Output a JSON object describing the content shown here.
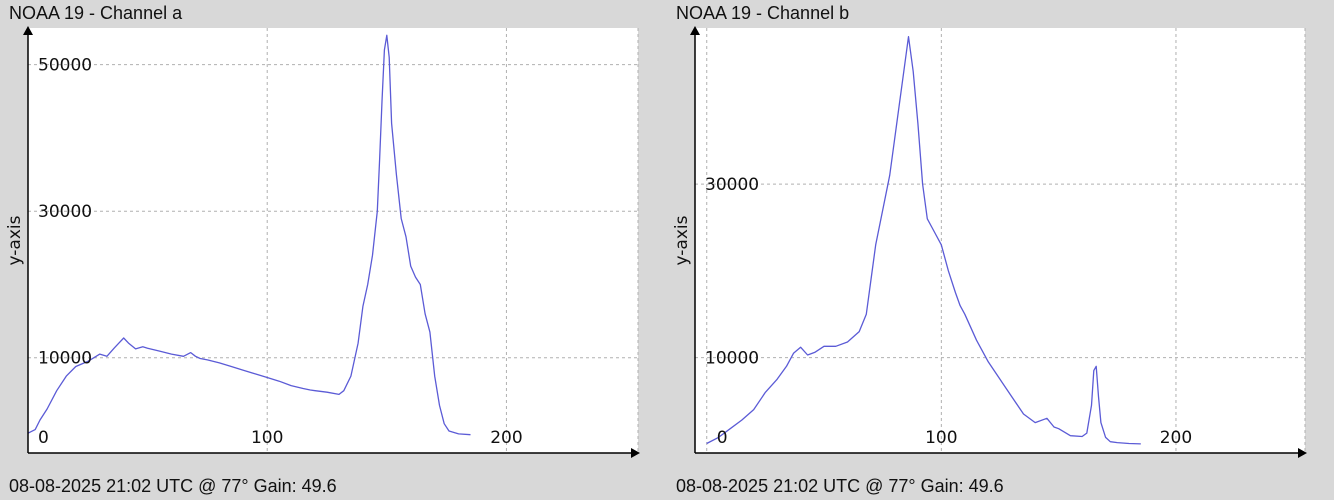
{
  "panels": [
    {
      "title": "NOAA 19 - Channel a",
      "footer": "08-08-2025 21:02 UTC @ 77° Gain: 49.6"
    },
    {
      "title": "NOAA 19 - Channel b",
      "footer": "08-08-2025 21:02 UTC @ 77° Gain: 49.6"
    }
  ],
  "colors": {
    "background": "#d8d8d8",
    "plot_background": "#ffffff",
    "line": "#5b5bd6",
    "grid": "#b0b0b0",
    "axis": "#000000"
  },
  "chart_data": [
    {
      "type": "line",
      "title": "NOAA 19 - Channel a",
      "xlabel": "",
      "ylabel": "y-axis",
      "xlim": [
        0,
        255
      ],
      "ylim": [
        -3000,
        55000
      ],
      "xticks": [
        0,
        100,
        200
      ],
      "yticks": [
        10000,
        30000,
        50000
      ],
      "grid": true,
      "series": [
        {
          "x": [
            0,
            3,
            5,
            8,
            12,
            16,
            20,
            25,
            30,
            33,
            36,
            38,
            40,
            42,
            45,
            48,
            50,
            55,
            60,
            65,
            68,
            70,
            72,
            75,
            80,
            85,
            90,
            95,
            100,
            105,
            110,
            115,
            118,
            120,
            125,
            130,
            132,
            135,
            138,
            140,
            142,
            144,
            146,
            147,
            148,
            149,
            150,
            151,
            152,
            154,
            156,
            158,
            160,
            162,
            164,
            166,
            168,
            170,
            172,
            174,
            176,
            180,
            185
          ],
          "y": [
            -300,
            200,
            1500,
            3000,
            5500,
            7500,
            8800,
            9500,
            10500,
            10200,
            11300,
            12000,
            12700,
            12000,
            11200,
            11500,
            11300,
            10900,
            10500,
            10200,
            10700,
            10200,
            9900,
            9700,
            9300,
            8800,
            8300,
            7800,
            7300,
            6800,
            6200,
            5800,
            5600,
            5500,
            5300,
            5000,
            5500,
            7500,
            12000,
            17000,
            20000,
            24000,
            30000,
            37000,
            45000,
            52000,
            54000,
            51000,
            42000,
            35000,
            29000,
            26500,
            22500,
            21000,
            20000,
            16000,
            13500,
            7500,
            3500,
            1000,
            0,
            -400,
            -500
          ]
        }
      ]
    },
    {
      "type": "line",
      "title": "NOAA 19 - Channel b",
      "xlabel": "",
      "ylabel": "y-axis",
      "xlim": [
        -5,
        255
      ],
      "ylim": [
        -1000,
        48000
      ],
      "xticks": [
        0,
        100,
        200
      ],
      "yticks": [
        10000,
        30000
      ],
      "grid": true,
      "series": [
        {
          "x": [
            0,
            5,
            10,
            15,
            20,
            25,
            30,
            34,
            37,
            40,
            43,
            46,
            50,
            55,
            60,
            65,
            68,
            70,
            72,
            75,
            78,
            80,
            82,
            84,
            86,
            88,
            90,
            92,
            94,
            96,
            100,
            103,
            106,
            108,
            110,
            115,
            120,
            125,
            130,
            135,
            140,
            145,
            148,
            150,
            155,
            160,
            162,
            164,
            165,
            166,
            167,
            168,
            170,
            172,
            175,
            180,
            185
          ],
          "y": [
            100,
            800,
            1800,
            2800,
            4000,
            6000,
            7500,
            9000,
            10500,
            11200,
            10300,
            10600,
            11300,
            11300,
            11800,
            13000,
            15000,
            19000,
            23000,
            27000,
            31000,
            35000,
            39000,
            43000,
            47000,
            43000,
            37000,
            30000,
            26000,
            25000,
            23000,
            20000,
            17500,
            16000,
            15000,
            12000,
            9500,
            7500,
            5500,
            3500,
            2500,
            3000,
            2000,
            1800,
            1000,
            900,
            1300,
            4500,
            8500,
            9000,
            5500,
            2500,
            800,
            300,
            200,
            100,
            50
          ]
        }
      ]
    }
  ]
}
